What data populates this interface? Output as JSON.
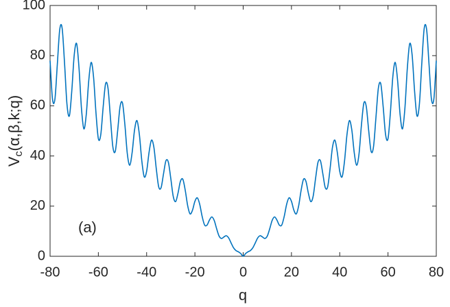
{
  "chart_data": {
    "type": "line",
    "xlabel": "q",
    "ylabel": {
      "main": "V",
      "sub": "c",
      "rest": "(α,β,k;q)"
    },
    "annotation": "(a)",
    "xlim": [
      -80,
      80
    ],
    "xticks": [
      -80,
      -60,
      -40,
      -20,
      0,
      20,
      40,
      60,
      80
    ],
    "ylim": [
      0,
      100
    ],
    "yticks": [
      0,
      20,
      40,
      60,
      80,
      100
    ],
    "grid": false,
    "x": [
      -80,
      -79,
      -78,
      -77,
      -76,
      -75,
      -74,
      -73,
      -72,
      -71,
      -70,
      -69,
      -68,
      -67,
      -66,
      -65,
      -64,
      -63,
      -62,
      -61,
      -60,
      -59,
      -58,
      -57,
      -56,
      -55,
      -54,
      -53,
      -52,
      -51,
      -50,
      -49,
      -48,
      -47,
      -46,
      -45,
      -44,
      -43,
      -42,
      -41,
      -40,
      -39,
      -38,
      -37,
      -36,
      -35,
      -34,
      -33,
      -32,
      -31,
      -30,
      -29,
      -28,
      -27,
      -26,
      -25,
      -24,
      -23,
      -22,
      -21,
      -20,
      -19,
      -18,
      -17,
      -16,
      -15,
      -14,
      -13,
      -12,
      -11,
      -10,
      -9,
      -8,
      -7,
      -6,
      -5,
      -4,
      -3,
      -2,
      -1,
      0,
      1,
      2,
      3,
      4,
      5,
      6,
      7,
      8,
      9,
      10,
      11,
      12,
      13,
      14,
      15,
      16,
      17,
      18,
      19,
      20,
      21,
      22,
      23,
      24,
      25,
      26,
      27,
      28,
      29,
      30,
      31,
      32,
      33,
      34,
      35,
      36,
      37,
      38,
      39,
      40,
      41,
      42,
      43,
      44,
      45,
      46,
      47,
      48,
      49,
      50,
      51,
      52,
      53,
      54,
      55,
      56,
      57,
      58,
      59,
      60,
      61,
      62,
      63,
      64,
      65,
      66,
      67,
      68,
      69,
      70,
      71,
      72,
      73,
      74,
      75,
      76,
      77,
      78,
      79,
      80
    ],
    "series": [
      {
        "color": "#0072bd",
        "values": [
          78.0,
          62.7,
          62.6,
          76.5,
          90.4,
          90.9,
          76.9,
          60.6,
          56.0,
          66.0,
          80.2,
          84.8,
          74.9,
          59.0,
          50.8,
          56.6,
          69.8,
          77.3,
          71.6,
          57.4,
          46.9,
          48.5,
          59.6,
          68.8,
          67.0,
          55.3,
          43.7,
          41.8,
          50.1,
          59.7,
          61.1,
          52.4,
          40.9,
          36.3,
          41.4,
          50.4,
          54.1,
          48.5,
          38.1,
          31.7,
          33.9,
          41.4,
          46.3,
          43.5,
          34.9,
          27.7,
          27.4,
          32.9,
          38.1,
          37.5,
          31.1,
          24.0,
          21.8,
          25.2,
          29.9,
          30.7,
          26.3,
          20.2,
          16.9,
          18.4,
          21.9,
          23.3,
          20.7,
          15.9,
          12.5,
          12.4,
          14.4,
          15.7,
          14.3,
          11.0,
          8.1,
          7.1,
          7.7,
          8.2,
          7.3,
          5.3,
          3.4,
          2.3,
          1.8,
          1.1,
          0,
          1.1,
          1.8,
          2.3,
          3.4,
          5.3,
          7.3,
          8.2,
          7.7,
          7.1,
          8.1,
          11.0,
          14.3,
          15.7,
          14.4,
          12.4,
          12.5,
          15.9,
          20.7,
          23.3,
          21.9,
          18.4,
          16.9,
          20.2,
          26.3,
          30.7,
          29.9,
          25.2,
          21.8,
          24.0,
          31.1,
          37.5,
          38.1,
          32.9,
          27.4,
          27.7,
          34.9,
          43.5,
          46.3,
          41.4,
          33.9,
          31.7,
          38.1,
          48.5,
          54.1,
          50.4,
          41.4,
          36.3,
          40.9,
          52.4,
          61.1,
          59.7,
          50.1,
          41.8,
          43.7,
          55.3,
          67.0,
          68.8,
          59.6,
          48.5,
          46.9,
          57.4,
          71.6,
          77.3,
          69.8,
          56.6,
          50.8,
          59.0,
          74.9,
          84.8,
          80.2,
          66.0,
          56.0,
          60.6,
          76.9,
          90.9,
          90.4,
          76.5,
          62.6,
          62.7,
          78.0
        ]
      }
    ]
  }
}
